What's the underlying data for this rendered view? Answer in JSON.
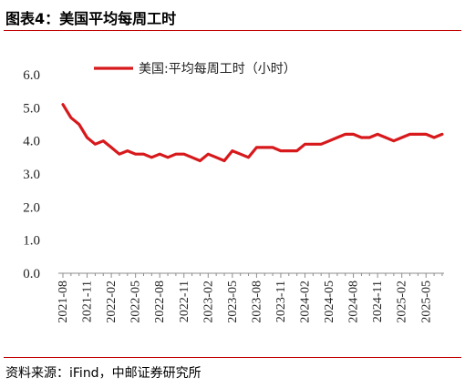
{
  "figure": {
    "title": "图表4：美国平均每周工时",
    "source": "资料来源：iFind，中邮证券研究所",
    "accent_color": "#c00000"
  },
  "chart_data": {
    "type": "line",
    "series": [
      {
        "name": "美国:平均每周工时（小时）",
        "color": "#d7191c",
        "values": [
          5.1,
          4.7,
          4.5,
          4.1,
          3.9,
          4.0,
          3.8,
          3.6,
          3.7,
          3.6,
          3.6,
          3.5,
          3.6,
          3.5,
          3.6,
          3.6,
          3.5,
          3.4,
          3.6,
          3.5,
          3.4,
          3.7,
          3.6,
          3.5,
          3.8,
          3.8,
          3.8,
          3.7,
          3.7,
          3.7,
          3.9,
          3.9,
          3.9,
          4.0,
          4.1,
          4.2,
          4.2,
          4.1,
          4.1,
          4.2,
          4.1,
          4.0,
          4.1,
          4.2,
          4.2,
          4.2,
          4.1,
          4.2
        ]
      }
    ],
    "x_tick_labels": [
      "2021-08",
      "2021-11",
      "2022-02",
      "2022-05",
      "2022-08",
      "2022-11",
      "2023-02",
      "2023-05",
      "2023-08",
      "2023-11",
      "2024-02",
      "2024-05",
      "2024-08",
      "2024-11",
      "2025-02",
      "2025-05"
    ],
    "x_tick_every": 3,
    "y_ticks": [
      "0.0",
      "1.0",
      "2.0",
      "3.0",
      "4.0",
      "5.0",
      "6.0"
    ],
    "ylim": [
      0,
      6
    ],
    "legend_position": "top",
    "grid": false
  }
}
